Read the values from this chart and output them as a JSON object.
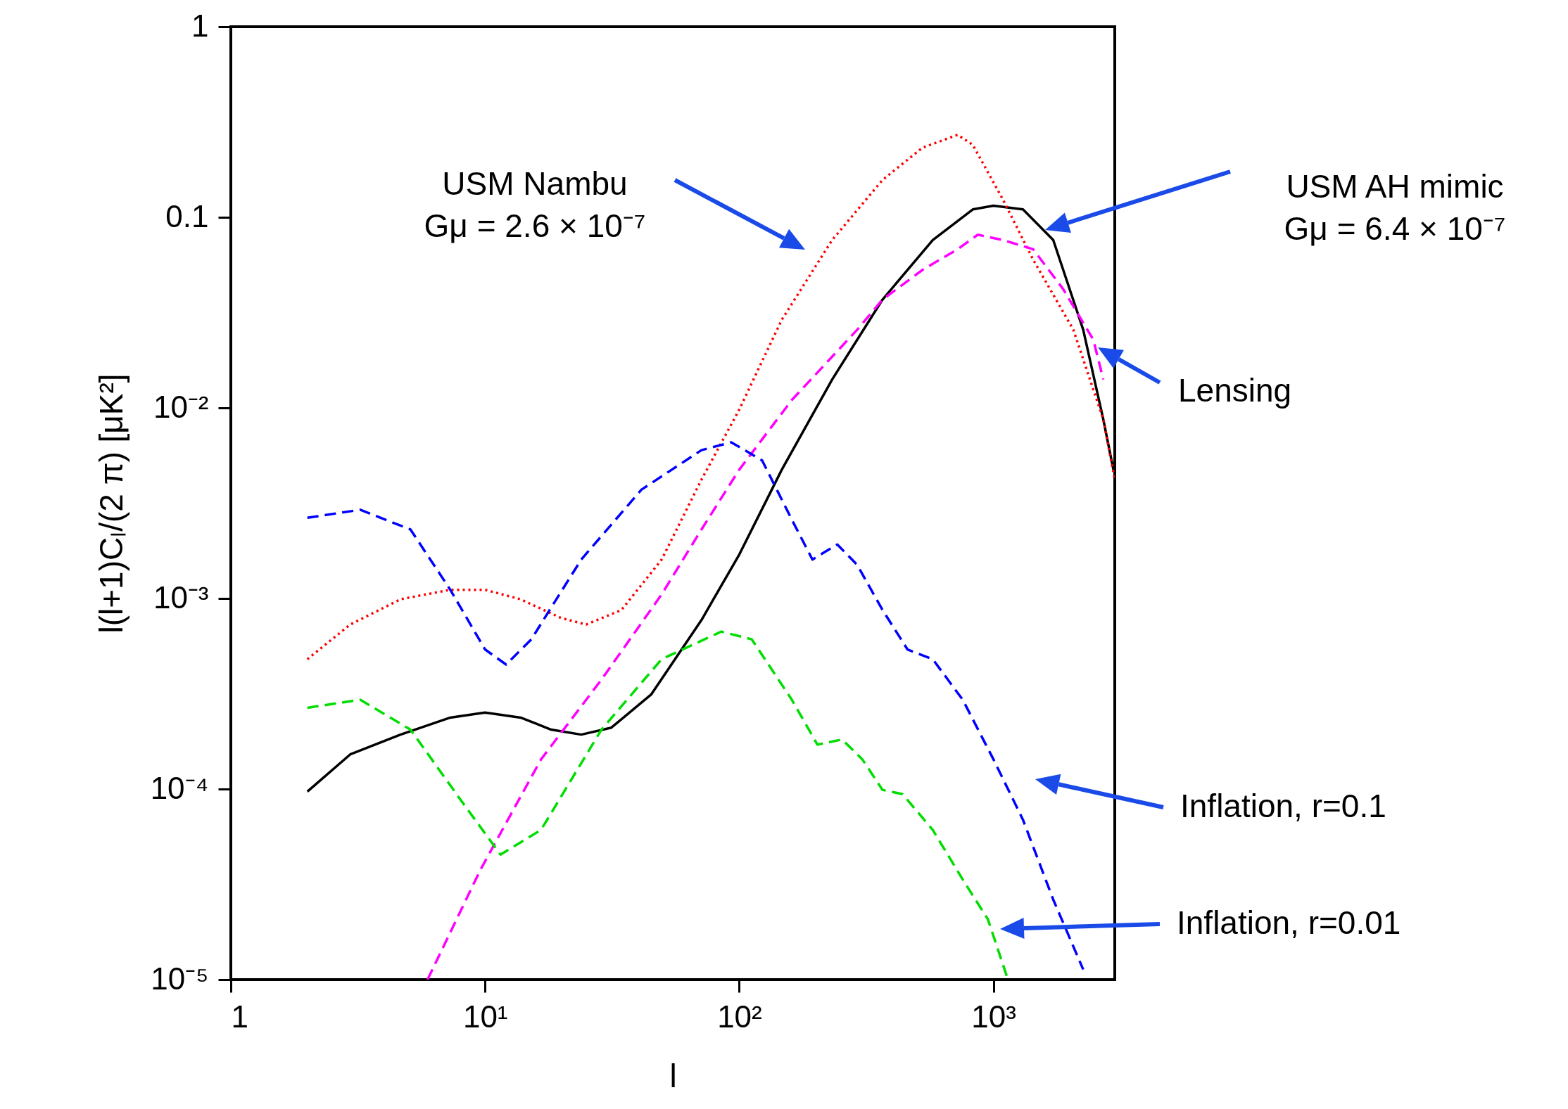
{
  "chart_data": {
    "type": "line",
    "xlabel": "l",
    "ylabel": "l(l+1)Cₗ/(2 π)  [μK²]",
    "log": "xy",
    "grid": false,
    "marker": "none",
    "xlim": [
      1,
      3000
    ],
    "ylim": [
      1e-05,
      1
    ],
    "xticks": [
      1,
      {
        "value": 10,
        "label": "10¹"
      },
      {
        "value": 100,
        "label": "10²"
      },
      {
        "value": 1000,
        "label": "10³"
      }
    ],
    "yticks": [
      {
        "value": 1e-05,
        "label": "10⁻⁵"
      },
      {
        "value": 0.0001,
        "label": "10⁻⁴"
      },
      {
        "value": 0.001,
        "label": "10⁻³"
      },
      {
        "value": 0.01,
        "label": "10⁻²"
      },
      0.1,
      1
    ],
    "series": [
      {
        "color": "#000000",
        "line_style": "solid",
        "x": [
          2,
          2.95,
          4.65,
          7.3,
          10,
          13.8,
          18.2,
          23.9,
          31.4,
          45,
          71,
          100,
          147,
          232,
          366,
          577,
          829,
          1000,
          1306,
          1718,
          2254,
          2704,
          2963
        ],
        "values": [
          9.7e-05,
          0.000152,
          0.000193,
          0.000237,
          0.000252,
          0.000237,
          0.000205,
          0.000193,
          0.00021,
          0.000313,
          0.00077,
          0.0017,
          0.00474,
          0.0141,
          0.037,
          0.076,
          0.11,
          0.115,
          0.11,
          0.076,
          0.0257,
          0.0087,
          0.00474
        ]
      },
      {
        "color": "#ff0000",
        "line_style": "dotted",
        "x": [
          2,
          2.95,
          4.65,
          7.3,
          10,
          13.8,
          19.9,
          25,
          34.4,
          49.5,
          71,
          100,
          147,
          232,
          366,
          526,
          723,
          829,
          1089,
          1432,
          2061,
          2704,
          3000
        ],
        "values": [
          0.00048,
          0.00073,
          0.00099,
          0.00111,
          0.00111,
          0.00099,
          0.00079,
          0.00073,
          0.00087,
          0.0016,
          0.0042,
          0.0098,
          0.029,
          0.076,
          0.157,
          0.232,
          0.271,
          0.24,
          0.124,
          0.06,
          0.0257,
          0.0087,
          0.0042
        ]
      },
      {
        "color": "#ff00ff",
        "line_style": "dashed",
        "x": [
          5.94,
          9.6,
          16.6,
          28.7,
          49.5,
          71,
          100,
          161,
          291,
          366,
          526,
          723,
          867,
          1089,
          1432,
          1880,
          2470,
          2704
        ],
        "values": [
          1e-05,
          3.78e-05,
          0.000143,
          0.000375,
          0.00105,
          0.0023,
          0.00474,
          0.011,
          0.0257,
          0.037,
          0.053,
          0.068,
          0.081,
          0.076,
          0.068,
          0.042,
          0.0228,
          0.0141
        ]
      },
      {
        "color": "#0000ff",
        "line_style": "dashed",
        "x": [
          2,
          3.23,
          5.09,
          7.3,
          10,
          12.1,
          15.2,
          23.9,
          41.2,
          71,
          93,
          123,
          161,
          194,
          243,
          291,
          366,
          459,
          577,
          757,
          1000,
          1306,
          1718,
          2254
        ],
        "values": [
          0.00265,
          0.00292,
          0.0023,
          0.00111,
          0.00054,
          0.00045,
          0.00061,
          0.0016,
          0.00372,
          0.006,
          0.0066,
          0.0053,
          0.00259,
          0.0016,
          0.00192,
          0.0015,
          0.00087,
          0.00054,
          0.00048,
          0.000294,
          0.000143,
          6.9e-05,
          2.63e-05,
          1.13e-05
        ]
      },
      {
        "color": "#00dd00",
        "line_style": "dashed",
        "x": [
          2,
          3.23,
          5.09,
          8.0,
          11.5,
          16.6,
          28.7,
          49.5,
          85,
          112,
          161,
          203,
          254,
          305,
          366,
          439,
          577,
          757,
          951,
          1140
        ],
        "values": [
          0.000267,
          0.000294,
          0.000205,
          8.8e-05,
          4.53e-05,
          6.1e-05,
          0.000205,
          0.00048,
          0.00067,
          0.00061,
          0.000294,
          0.000171,
          0.000182,
          0.000143,
          9.9e-05,
          9.4e-05,
          6.1e-05,
          3.35e-05,
          2.07e-05,
          1e-05
        ]
      }
    ],
    "annotations": [
      "USM Nambu\nGμ = 2.6 × 10⁻⁷",
      "USM AH mimic\nGμ = 6.4 × 10⁻⁷",
      "Lensing",
      "Inflation, r=0.1",
      "Inflation, r=0.01"
    ]
  }
}
